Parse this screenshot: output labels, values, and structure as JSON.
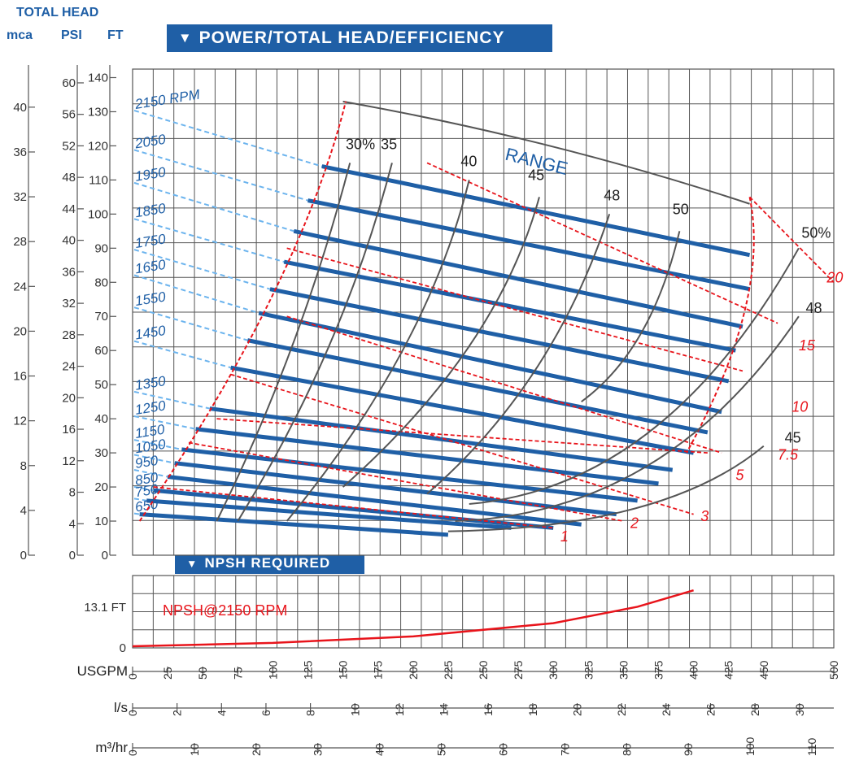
{
  "chart_data": {
    "type": "line",
    "title": "POWER/TOTAL HEAD/EFFICIENCY",
    "left_axes_title": "TOTAL HEAD",
    "left_axes": [
      {
        "unit": "mca",
        "ticks": [
          0,
          4,
          8,
          12,
          16,
          20,
          24,
          28,
          32,
          36,
          40
        ]
      },
      {
        "unit": "PSI",
        "ticks": [
          0,
          4,
          8,
          12,
          16,
          20,
          24,
          28,
          32,
          36,
          40,
          44,
          48,
          52,
          56,
          60
        ]
      },
      {
        "unit": "FT",
        "ticks": [
          0,
          10,
          20,
          30,
          40,
          50,
          60,
          70,
          80,
          90,
          100,
          110,
          120,
          130,
          140
        ]
      }
    ],
    "xlim": [
      0,
      500
    ],
    "ylim_ft": [
      0,
      140
    ],
    "speed_curves_label_suffix": "RPM",
    "speed_curves": [
      {
        "name": "2150 RPM",
        "range_usgpm": [
          135,
          440
        ],
        "head_ft": [
          114,
          88
        ]
      },
      {
        "name": "2050",
        "range_usgpm": [
          125,
          440
        ],
        "head_ft": [
          104,
          78
        ]
      },
      {
        "name": "1950",
        "range_usgpm": [
          115,
          435
        ],
        "head_ft": [
          95,
          67
        ]
      },
      {
        "name": "1850",
        "range_usgpm": [
          108,
          430
        ],
        "head_ft": [
          86,
          60
        ]
      },
      {
        "name": "1750",
        "range_usgpm": [
          98,
          425
        ],
        "head_ft": [
          78,
          51
        ]
      },
      {
        "name": "1650",
        "range_usgpm": [
          90,
          420
        ],
        "head_ft": [
          71,
          42
        ]
      },
      {
        "name": "1550",
        "range_usgpm": [
          82,
          410
        ],
        "head_ft": [
          63,
          36
        ]
      },
      {
        "name": "1450",
        "range_usgpm": [
          70,
          400
        ],
        "head_ft": [
          55,
          30
        ]
      },
      {
        "name": "1350",
        "range_usgpm": [
          55,
          385
        ],
        "head_ft": [
          43,
          25
        ]
      },
      {
        "name": "1250",
        "range_usgpm": [
          45,
          375
        ],
        "head_ft": [
          37,
          21
        ]
      },
      {
        "name": "1150",
        "range_usgpm": [
          35,
          360
        ],
        "head_ft": [
          31,
          16
        ]
      },
      {
        "name": "1050",
        "range_usgpm": [
          30,
          345
        ],
        "head_ft": [
          27,
          12
        ]
      },
      {
        "name": "950",
        "range_usgpm": [
          25,
          320
        ],
        "head_ft": [
          23,
          9
        ]
      },
      {
        "name": "850",
        "range_usgpm": [
          15,
          300
        ],
        "head_ft": [
          19,
          8
        ]
      },
      {
        "name": "750",
        "range_usgpm": [
          10,
          270
        ],
        "head_ft": [
          16,
          8
        ]
      },
      {
        "name": "650",
        "range_usgpm": [
          5,
          225
        ],
        "head_ft": [
          12,
          6
        ]
      }
    ],
    "efficiency_labels": [
      "30%",
      "35",
      "40",
      "45",
      "48",
      "50",
      "50%",
      "48",
      "45"
    ],
    "power_labels": [
      "1",
      "2",
      "3",
      "5",
      "7.5",
      "10",
      "15",
      "20 HP"
    ],
    "range_label": "RANGE",
    "npsh": {
      "title": "NPSH REQUIRED",
      "series_label": "NPSH@2150 RPM",
      "tick_labels": [
        "0",
        "13.1 FT"
      ],
      "curve_usgpm": [
        0,
        100,
        200,
        300,
        360,
        400
      ],
      "curve_ft": [
        0.5,
        1.5,
        3.5,
        7.5,
        12.5,
        17.5
      ]
    },
    "x_axes": [
      {
        "unit": "USGPM",
        "ticks": [
          0,
          25,
          50,
          75,
          100,
          125,
          150,
          175,
          200,
          225,
          250,
          275,
          300,
          325,
          350,
          375,
          400,
          425,
          450,
          500
        ]
      },
      {
        "unit": "l/s",
        "ticks": [
          0,
          2,
          4,
          6,
          8,
          10,
          12,
          14,
          16,
          18,
          20,
          22,
          24,
          26,
          28,
          30,
          32
        ]
      },
      {
        "unit": "m³/hr",
        "ticks": [
          0,
          10,
          20,
          30,
          40,
          50,
          60,
          70,
          80,
          90,
          100,
          110
        ]
      }
    ],
    "grid": true
  },
  "colors": {
    "blue": "#1f5fa6",
    "light_blue": "#6cb4ee",
    "red": "#e8141b",
    "gray": "#555555",
    "grid": "#555555"
  }
}
